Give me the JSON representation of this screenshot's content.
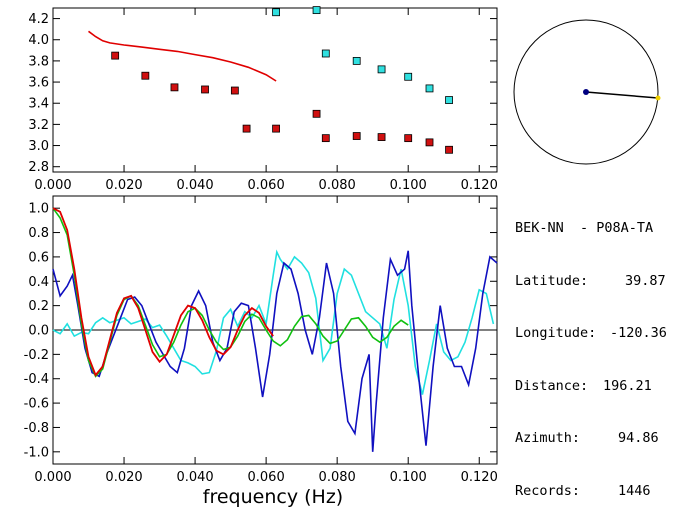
{
  "xlabel": "frequency (Hz)",
  "station": {
    "pair": "BEK-NN  - P08A-TA",
    "rows": [
      {
        "label": "Latitude:",
        "value": "39.87"
      },
      {
        "label": "Longitude:",
        "value": "-120.36"
      },
      {
        "label": "Distance:",
        "value": "196.21"
      },
      {
        "label": "Azimuth:",
        "value": "94.86"
      },
      {
        "label": "Records:",
        "value": "1446"
      }
    ]
  },
  "colors": {
    "red": "#e00000",
    "red_marker": "#d01010",
    "cyan": "#20e0e0",
    "cyan_marker": "#30e0e0",
    "blue": "#1010c0",
    "green": "#10c010",
    "map_dot": "#000080",
    "map_end": "#f0d000"
  },
  "chart_data": [
    {
      "type": "scatter",
      "xlim": [
        0.0,
        0.125
      ],
      "ylim": [
        2.75,
        4.3
      ],
      "x_ticks": [
        "0.000",
        "0.020",
        "0.040",
        "0.060",
        "0.080",
        "0.100",
        "0.120"
      ],
      "y_ticks": [
        "2.8",
        "3.0",
        "3.2",
        "3.4",
        "3.6",
        "3.8",
        "4.0",
        "4.2"
      ],
      "series": [
        {
          "marker_color": "red",
          "points": [
            [
              0.0175,
              3.85
            ],
            [
              0.026,
              3.66
            ],
            [
              0.0342,
              3.55
            ],
            [
              0.0428,
              3.53
            ],
            [
              0.0512,
              3.52
            ],
            [
              0.0545,
              3.16
            ],
            [
              0.0628,
              3.16
            ],
            [
              0.0742,
              3.3
            ],
            [
              0.0768,
              3.07
            ],
            [
              0.0855,
              3.09
            ],
            [
              0.0925,
              3.08
            ],
            [
              0.1,
              3.07
            ],
            [
              0.106,
              3.03
            ],
            [
              0.1115,
              2.96
            ]
          ]
        },
        {
          "marker_color": "cyan",
          "points": [
            [
              0.0628,
              4.26
            ],
            [
              0.0742,
              4.28
            ],
            [
              0.0768,
              3.87
            ],
            [
              0.0855,
              3.8
            ],
            [
              0.0925,
              3.72
            ],
            [
              0.1,
              3.65
            ],
            [
              0.106,
              3.54
            ],
            [
              0.1115,
              3.43
            ]
          ]
        },
        {
          "line_color": "red",
          "points": [
            [
              0.01,
              4.08
            ],
            [
              0.012,
              4.03
            ],
            [
              0.014,
              3.99
            ],
            [
              0.016,
              3.97
            ],
            [
              0.02,
              3.95
            ],
            [
              0.025,
              3.93
            ],
            [
              0.03,
              3.91
            ],
            [
              0.035,
              3.89
            ],
            [
              0.04,
              3.86
            ],
            [
              0.045,
              3.83
            ],
            [
              0.05,
              3.79
            ],
            [
              0.055,
              3.74
            ],
            [
              0.06,
              3.67
            ],
            [
              0.0628,
              3.61
            ]
          ]
        }
      ]
    },
    {
      "type": "line",
      "xlim": [
        0.0,
        0.125
      ],
      "ylim": [
        -1.1,
        1.1
      ],
      "x_ticks": [
        "0.000",
        "0.020",
        "0.040",
        "0.060",
        "0.080",
        "0.100",
        "0.120"
      ],
      "y_ticks": [
        "1.0",
        "0.8",
        "0.6",
        "0.4",
        "0.2",
        "0.0",
        "-0.2",
        "-0.4",
        "-0.6",
        "-0.8",
        "-1.0"
      ],
      "series": [
        {
          "color": "cyan",
          "points": [
            [
              0.0,
              0.0
            ],
            [
              0.002,
              -0.03
            ],
            [
              0.004,
              0.05
            ],
            [
              0.006,
              -0.05
            ],
            [
              0.008,
              -0.02
            ],
            [
              0.01,
              -0.03
            ],
            [
              0.012,
              0.06
            ],
            [
              0.014,
              0.1
            ],
            [
              0.016,
              0.06
            ],
            [
              0.018,
              0.08
            ],
            [
              0.02,
              0.1
            ],
            [
              0.022,
              0.05
            ],
            [
              0.024,
              0.07
            ],
            [
              0.026,
              0.09
            ],
            [
              0.028,
              0.02
            ],
            [
              0.03,
              0.04
            ],
            [
              0.032,
              -0.05
            ],
            [
              0.034,
              -0.15
            ],
            [
              0.036,
              -0.25
            ],
            [
              0.038,
              -0.27
            ],
            [
              0.04,
              -0.3
            ],
            [
              0.042,
              -0.36
            ],
            [
              0.044,
              -0.35
            ],
            [
              0.046,
              -0.17
            ],
            [
              0.048,
              0.1
            ],
            [
              0.05,
              0.17
            ],
            [
              0.052,
              0.03
            ],
            [
              0.054,
              0.15
            ],
            [
              0.056,
              0.1
            ],
            [
              0.058,
              0.2
            ],
            [
              0.06,
              0.05
            ],
            [
              0.062,
              0.45
            ],
            [
              0.063,
              0.64
            ],
            [
              0.064,
              0.58
            ],
            [
              0.066,
              0.5
            ],
            [
              0.068,
              0.6
            ],
            [
              0.07,
              0.55
            ],
            [
              0.072,
              0.47
            ],
            [
              0.074,
              0.26
            ],
            [
              0.076,
              -0.25
            ],
            [
              0.078,
              -0.15
            ],
            [
              0.08,
              0.3
            ],
            [
              0.082,
              0.5
            ],
            [
              0.084,
              0.45
            ],
            [
              0.086,
              0.3
            ],
            [
              0.088,
              0.15
            ],
            [
              0.09,
              0.1
            ],
            [
              0.092,
              0.05
            ],
            [
              0.094,
              -0.15
            ],
            [
              0.096,
              0.25
            ],
            [
              0.098,
              0.5
            ],
            [
              0.1,
              0.2
            ],
            [
              0.102,
              -0.3
            ],
            [
              0.104,
              -0.53
            ],
            [
              0.106,
              -0.25
            ],
            [
              0.108,
              0.05
            ],
            [
              0.11,
              -0.18
            ],
            [
              0.112,
              -0.25
            ],
            [
              0.114,
              -0.22
            ],
            [
              0.116,
              -0.1
            ],
            [
              0.118,
              0.1
            ],
            [
              0.12,
              0.33
            ],
            [
              0.122,
              0.3
            ],
            [
              0.124,
              0.05
            ]
          ]
        },
        {
          "color": "blue",
          "points": [
            [
              0.0,
              0.5
            ],
            [
              0.002,
              0.28
            ],
            [
              0.004,
              0.36
            ],
            [
              0.0055,
              0.45
            ],
            [
              0.007,
              0.2
            ],
            [
              0.009,
              -0.15
            ],
            [
              0.011,
              -0.35
            ],
            [
              0.013,
              -0.38
            ],
            [
              0.015,
              -0.2
            ],
            [
              0.017,
              -0.05
            ],
            [
              0.019,
              0.1
            ],
            [
              0.021,
              0.25
            ],
            [
              0.023,
              0.27
            ],
            [
              0.025,
              0.2
            ],
            [
              0.027,
              0.05
            ],
            [
              0.029,
              -0.1
            ],
            [
              0.031,
              -0.2
            ],
            [
              0.033,
              -0.3
            ],
            [
              0.035,
              -0.35
            ],
            [
              0.037,
              -0.15
            ],
            [
              0.039,
              0.2
            ],
            [
              0.041,
              0.32
            ],
            [
              0.043,
              0.2
            ],
            [
              0.045,
              -0.1
            ],
            [
              0.047,
              -0.25
            ],
            [
              0.049,
              -0.15
            ],
            [
              0.051,
              0.15
            ],
            [
              0.053,
              0.22
            ],
            [
              0.055,
              0.2
            ],
            [
              0.057,
              -0.15
            ],
            [
              0.059,
              -0.55
            ],
            [
              0.061,
              -0.2
            ],
            [
              0.063,
              0.3
            ],
            [
              0.065,
              0.55
            ],
            [
              0.067,
              0.5
            ],
            [
              0.069,
              0.3
            ],
            [
              0.071,
              0.0
            ],
            [
              0.073,
              -0.2
            ],
            [
              0.075,
              0.1
            ],
            [
              0.077,
              0.55
            ],
            [
              0.079,
              0.3
            ],
            [
              0.081,
              -0.3
            ],
            [
              0.083,
              -0.75
            ],
            [
              0.085,
              -0.85
            ],
            [
              0.087,
              -0.4
            ],
            [
              0.089,
              -0.2
            ],
            [
              0.09,
              -1.0
            ],
            [
              0.091,
              -0.6
            ],
            [
              0.093,
              0.1
            ],
            [
              0.095,
              0.58
            ],
            [
              0.097,
              0.45
            ],
            [
              0.099,
              0.5
            ],
            [
              0.1,
              0.65
            ],
            [
              0.101,
              0.2
            ],
            [
              0.103,
              -0.4
            ],
            [
              0.105,
              -0.95
            ],
            [
              0.107,
              -0.3
            ],
            [
              0.109,
              0.2
            ],
            [
              0.111,
              -0.15
            ],
            [
              0.113,
              -0.3
            ],
            [
              0.115,
              -0.3
            ],
            [
              0.117,
              -0.45
            ],
            [
              0.119,
              -0.15
            ],
            [
              0.121,
              0.3
            ],
            [
              0.123,
              0.6
            ],
            [
              0.125,
              0.55
            ]
          ]
        },
        {
          "color": "green",
          "points": [
            [
              0.0,
              1.0
            ],
            [
              0.002,
              0.92
            ],
            [
              0.004,
              0.78
            ],
            [
              0.006,
              0.45
            ],
            [
              0.008,
              0.05
            ],
            [
              0.01,
              -0.25
            ],
            [
              0.012,
              -0.38
            ],
            [
              0.014,
              -0.32
            ],
            [
              0.016,
              -0.1
            ],
            [
              0.018,
              0.12
            ],
            [
              0.02,
              0.25
            ],
            [
              0.022,
              0.28
            ],
            [
              0.024,
              0.2
            ],
            [
              0.026,
              0.04
            ],
            [
              0.028,
              -0.12
            ],
            [
              0.03,
              -0.22
            ],
            [
              0.032,
              -0.2
            ],
            [
              0.034,
              -0.1
            ],
            [
              0.036,
              0.04
            ],
            [
              0.038,
              0.15
            ],
            [
              0.04,
              0.18
            ],
            [
              0.042,
              0.12
            ],
            [
              0.044,
              0.0
            ],
            [
              0.046,
              -0.1
            ],
            [
              0.048,
              -0.16
            ],
            [
              0.05,
              -0.14
            ],
            [
              0.052,
              -0.05
            ],
            [
              0.054,
              0.07
            ],
            [
              0.056,
              0.13
            ],
            [
              0.058,
              0.1
            ],
            [
              0.06,
              0.0
            ],
            [
              0.062,
              -0.09
            ],
            [
              0.064,
              -0.13
            ],
            [
              0.066,
              -0.08
            ],
            [
              0.068,
              0.03
            ],
            [
              0.07,
              0.11
            ],
            [
              0.072,
              0.12
            ],
            [
              0.074,
              0.05
            ],
            [
              0.076,
              -0.05
            ],
            [
              0.078,
              -0.11
            ],
            [
              0.08,
              -0.09
            ],
            [
              0.082,
              0.0
            ],
            [
              0.084,
              0.09
            ],
            [
              0.086,
              0.1
            ],
            [
              0.088,
              0.03
            ],
            [
              0.09,
              -0.06
            ],
            [
              0.092,
              -0.1
            ],
            [
              0.094,
              -0.06
            ],
            [
              0.096,
              0.03
            ],
            [
              0.098,
              0.08
            ],
            [
              0.1,
              0.04
            ]
          ]
        },
        {
          "color": "red",
          "points": [
            [
              0.0,
              1.0
            ],
            [
              0.002,
              0.97
            ],
            [
              0.004,
              0.82
            ],
            [
              0.006,
              0.5
            ],
            [
              0.008,
              0.1
            ],
            [
              0.01,
              -0.22
            ],
            [
              0.012,
              -0.37
            ],
            [
              0.014,
              -0.3
            ],
            [
              0.016,
              -0.08
            ],
            [
              0.018,
              0.14
            ],
            [
              0.02,
              0.26
            ],
            [
              0.022,
              0.28
            ],
            [
              0.024,
              0.18
            ],
            [
              0.026,
              0.0
            ],
            [
              0.028,
              -0.18
            ],
            [
              0.03,
              -0.26
            ],
            [
              0.032,
              -0.2
            ],
            [
              0.034,
              -0.04
            ],
            [
              0.036,
              0.12
            ],
            [
              0.038,
              0.2
            ],
            [
              0.04,
              0.18
            ],
            [
              0.042,
              0.08
            ],
            [
              0.044,
              -0.06
            ],
            [
              0.046,
              -0.17
            ],
            [
              0.048,
              -0.2
            ],
            [
              0.05,
              -0.14
            ],
            [
              0.052,
              0.0
            ],
            [
              0.054,
              0.12
            ],
            [
              0.056,
              0.18
            ],
            [
              0.058,
              0.14
            ],
            [
              0.06,
              0.03
            ],
            [
              0.062,
              -0.05
            ]
          ]
        }
      ]
    }
  ]
}
